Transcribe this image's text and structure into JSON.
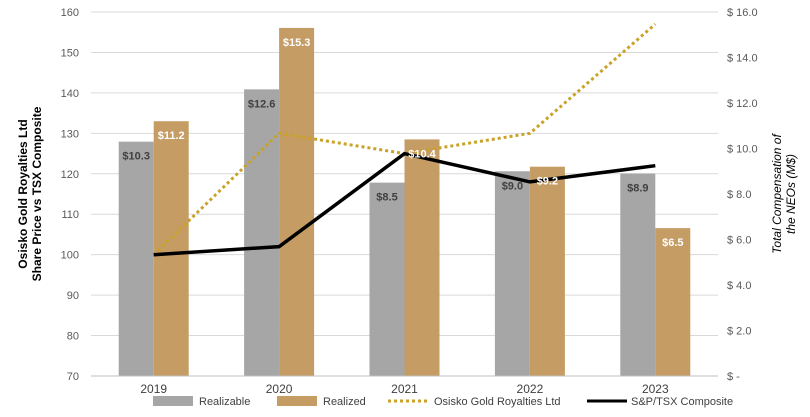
{
  "chart_data": {
    "type": "bar",
    "categories": [
      "2019",
      "2020",
      "2021",
      "2022",
      "2023"
    ],
    "left_axis": {
      "label_lines": [
        "Osisko Gold Royalties Ltd",
        "Share Price vs TSX Composite"
      ],
      "ylim": [
        70,
        160
      ],
      "ticks": [
        "70",
        "80",
        "90",
        "100",
        "110",
        "120",
        "130",
        "140",
        "150",
        "160"
      ]
    },
    "right_axis": {
      "label_lines": [
        "Total Compensation of",
        "the NEOs (M$)"
      ],
      "ylim": [
        0,
        16
      ],
      "ticks": [
        "$ -",
        "$ 2.0",
        "$ 4.0",
        "$ 6.0",
        "$ 8.0",
        "$ 10.0",
        "$ 12.0",
        "$ 14.0",
        "$ 16.0"
      ]
    },
    "bar_series": [
      {
        "name": "Realizable",
        "color": "#a6a6a6",
        "values": [
          10.3,
          12.6,
          8.5,
          9.0,
          8.9
        ],
        "labels": [
          "$10.3",
          "$12.6",
          "$8.5",
          "$9.0",
          "$8.9"
        ],
        "label_color": "#404040"
      },
      {
        "name": "Realized",
        "color": "#c49c64",
        "values": [
          11.2,
          15.3,
          10.4,
          9.2,
          6.5
        ],
        "labels": [
          "$11.2",
          "$15.3",
          "$10.4",
          "$9.2",
          "$6.5"
        ],
        "label_color": "#ffffff"
      }
    ],
    "line_series": [
      {
        "name": "Osisko Gold Royalties Ltd",
        "color": "#c9a227",
        "style": "dotted",
        "axis": "left",
        "values": [
          100,
          130,
          125,
          130,
          157
        ]
      },
      {
        "name": "S&P/TSX Composite",
        "color": "#000000",
        "style": "solid",
        "axis": "left",
        "values": [
          100,
          102,
          125,
          118,
          122
        ]
      }
    ],
    "grid": true,
    "legend_position": "bottom"
  }
}
